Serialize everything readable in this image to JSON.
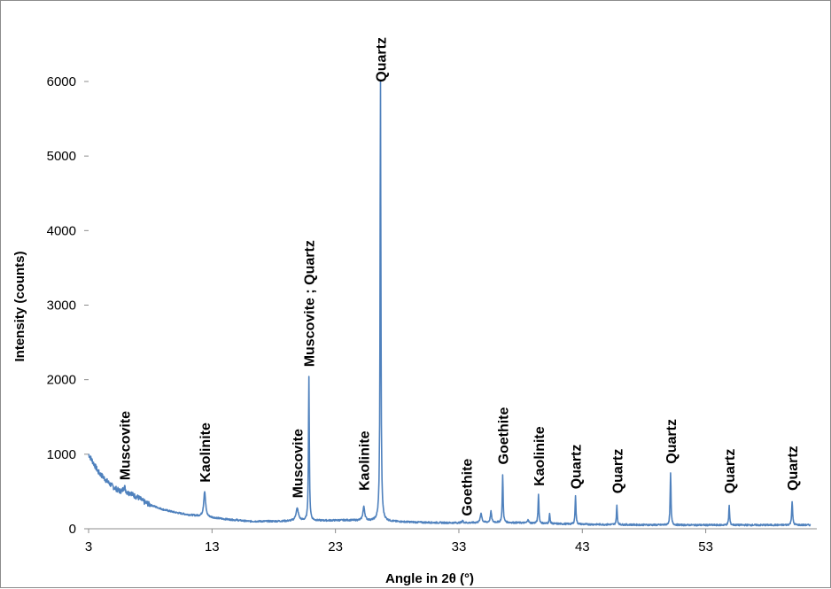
{
  "chart_data": {
    "type": "line",
    "title": "",
    "xlabel": "Angle in 2θ (°)",
    "ylabel": "Intensity (counts)",
    "xlim": [
      3,
      62
    ],
    "ylim": [
      0,
      6000
    ],
    "x_ticks": [
      3,
      13,
      23,
      33,
      43,
      53
    ],
    "y_ticks": [
      0,
      1000,
      2000,
      3000,
      4000,
      5000,
      6000
    ],
    "grid": false,
    "legend": "none",
    "line_color": "#4f81bd",
    "background": [
      [
        3,
        1000
      ],
      [
        3.4,
        880
      ],
      [
        3.8,
        760
      ],
      [
        4.2,
        690
      ],
      [
        4.6,
        620
      ],
      [
        5.0,
        560
      ],
      [
        5.5,
        500
      ],
      [
        6.0,
        470
      ],
      [
        6.5,
        450
      ],
      [
        7.0,
        420
      ],
      [
        7.5,
        360
      ],
      [
        8.0,
        320
      ],
      [
        8.5,
        290
      ],
      [
        9.0,
        260
      ],
      [
        9.5,
        240
      ],
      [
        10.0,
        220
      ],
      [
        11.0,
        190
      ],
      [
        12.0,
        170
      ],
      [
        13.0,
        150
      ],
      [
        14.0,
        130
      ],
      [
        15.0,
        115
      ],
      [
        16.0,
        100
      ],
      [
        18.0,
        100
      ],
      [
        20.0,
        105
      ],
      [
        22.0,
        110
      ],
      [
        24.0,
        115
      ],
      [
        26.0,
        105
      ],
      [
        28.0,
        95
      ],
      [
        30.0,
        85
      ],
      [
        32.0,
        80
      ],
      [
        34.0,
        80
      ],
      [
        36.0,
        85
      ],
      [
        38.0,
        80
      ],
      [
        40.0,
        70
      ],
      [
        43.0,
        60
      ],
      [
        46.0,
        55
      ],
      [
        50.0,
        50
      ],
      [
        55.0,
        50
      ],
      [
        60.0,
        50
      ],
      [
        62.0,
        50
      ]
    ],
    "peaks": [
      {
        "x": 5.9,
        "y": 560,
        "w": 0.25
      },
      {
        "x": 6.4,
        "y": 480,
        "w": 0.25
      },
      {
        "x": 12.4,
        "y": 500,
        "w": 0.18
      },
      {
        "x": 15.0,
        "y": 120,
        "w": 0.1
      },
      {
        "x": 19.9,
        "y": 270,
        "w": 0.25
      },
      {
        "x": 20.85,
        "y": 2040,
        "w": 0.08
      },
      {
        "x": 25.3,
        "y": 290,
        "w": 0.18
      },
      {
        "x": 26.65,
        "y": 6000,
        "w": 0.08
      },
      {
        "x": 33.3,
        "y": 110,
        "w": 0.12
      },
      {
        "x": 34.8,
        "y": 210,
        "w": 0.15
      },
      {
        "x": 35.6,
        "y": 230,
        "w": 0.12
      },
      {
        "x": 36.55,
        "y": 730,
        "w": 0.08
      },
      {
        "x": 38.6,
        "y": 130,
        "w": 0.1
      },
      {
        "x": 39.45,
        "y": 470,
        "w": 0.08
      },
      {
        "x": 40.35,
        "y": 200,
        "w": 0.08
      },
      {
        "x": 42.45,
        "y": 450,
        "w": 0.08
      },
      {
        "x": 45.8,
        "y": 310,
        "w": 0.08
      },
      {
        "x": 50.15,
        "y": 760,
        "w": 0.08
      },
      {
        "x": 54.9,
        "y": 310,
        "w": 0.08
      },
      {
        "x": 60.0,
        "y": 370,
        "w": 0.09
      }
    ],
    "annotations": [
      {
        "text": "Muscovite",
        "x": 5.9,
        "y": 580
      },
      {
        "text": "Kaolinite",
        "x": 12.4,
        "y": 550
      },
      {
        "text": "Muscovite",
        "x": 19.9,
        "y": 340
      },
      {
        "text": "Muscovite ; Quartz",
        "x": 20.85,
        "y": 2100
      },
      {
        "text": "Kaolinite",
        "x": 25.3,
        "y": 440
      },
      {
        "text": "Quartz",
        "x": 26.65,
        "y": 5920
      },
      {
        "text": "Goethite",
        "x": 33.6,
        "y": 100
      },
      {
        "text": "Goethite",
        "x": 36.55,
        "y": 790
      },
      {
        "text": "Kaolinite",
        "x": 39.45,
        "y": 500
      },
      {
        "text": "Quartz",
        "x": 42.45,
        "y": 460
      },
      {
        "text": "Quartz",
        "x": 45.8,
        "y": 400
      },
      {
        "text": "Quartz",
        "x": 50.15,
        "y": 800
      },
      {
        "text": "Quartz",
        "x": 54.9,
        "y": 400
      },
      {
        "text": "Quartz",
        "x": 60.0,
        "y": 440
      }
    ]
  }
}
